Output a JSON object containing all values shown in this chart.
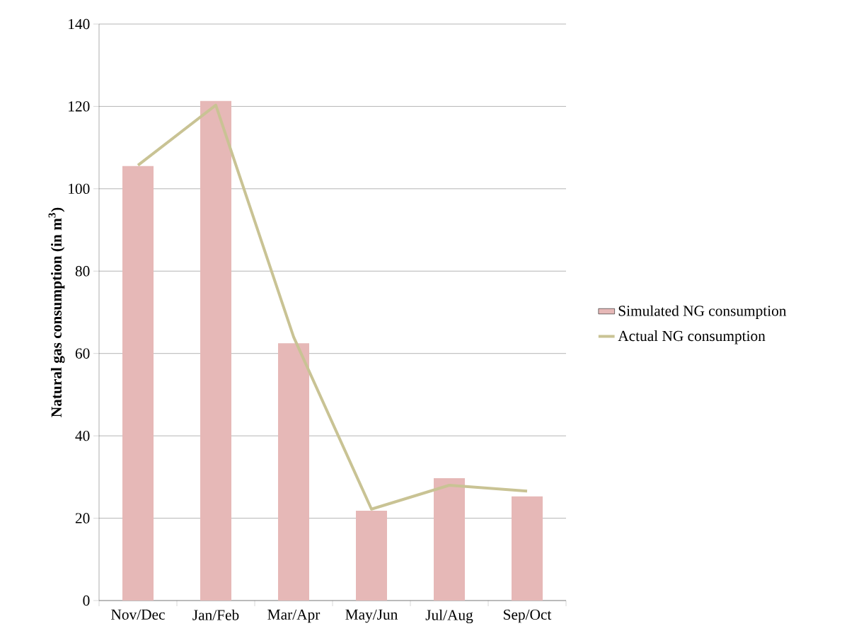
{
  "chart_data": {
    "type": "bar",
    "ylabel": "Natural gas consumption (in m$^{3}$)",
    "categories": [
      "Nov/Dec",
      "Jan/Feb",
      "Mar/Apr",
      "May/Jun",
      "Jul/Aug",
      "Sep/Oct"
    ],
    "series": [
      {
        "name": "Simulated NG consumption",
        "color": "#e6b8b7",
        "values": [
          105.5,
          121.3,
          62.5,
          21.8,
          29.7,
          25.3
        ]
      },
      {
        "name": "Actual NG consumption",
        "type": "line",
        "color": "#c9c394",
        "values": [
          105.7,
          120.3,
          64,
          22.2,
          28,
          26.6
        ]
      }
    ],
    "ylim": [
      0,
      140
    ],
    "yticks": [
      0,
      20,
      40,
      60,
      80,
      100,
      120,
      140
    ],
    "grid": "y",
    "legend": "right"
  }
}
